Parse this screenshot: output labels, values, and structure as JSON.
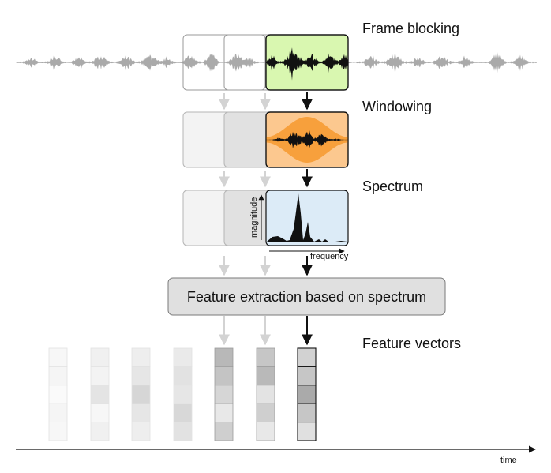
{
  "stages": {
    "frame_blocking": "Frame blocking",
    "windowing": "Windowing",
    "spectrum": "Spectrum",
    "feature_vectors": "Feature vectors"
  },
  "spectrum_axes": {
    "y_label": "magnitude",
    "x_label": "frequency"
  },
  "extraction_label": "Feature extraction based on spectrum",
  "time_label": "time",
  "colors": {
    "frame_fill": "#d9f7b0",
    "window_fill": "#fcc88f",
    "window_envelope": "#f7a03c",
    "spectrum_fill": "#dcebf7",
    "box_fill": "#e0e0e0",
    "waveform_gray": "#aaaaaa",
    "waveform_dark": "#111111"
  },
  "feature_vectors": [
    {
      "shades": [
        "#f7f7f7",
        "#f5f5f5",
        "#fafafa",
        "#f5f5f5",
        "#f7f7f7"
      ]
    },
    {
      "shades": [
        "#f0f0f0",
        "#f3f3f3",
        "#e4e4e4",
        "#f7f7f7",
        "#f0f0f0"
      ]
    },
    {
      "shades": [
        "#eeeeee",
        "#e6e6e6",
        "#d6d6d6",
        "#e6e6e6",
        "#eeeeee"
      ]
    },
    {
      "shades": [
        "#eaeaea",
        "#e2e2e2",
        "#e6e6e6",
        "#d8d8d8",
        "#e2e2e2"
      ]
    },
    {
      "shades": [
        "#b8b8b8",
        "#c4c4c4",
        "#d6d6d6",
        "#e8e8e8",
        "#cfcfcf"
      ]
    },
    {
      "shades": [
        "#c6c6c6",
        "#b9b9b9",
        "#e3e3e3",
        "#cfcfcf",
        "#e8e8e8"
      ]
    },
    {
      "shades": [
        "#d2d2d2",
        "#c6c6c6",
        "#aaaaaa",
        "#c6c6c6",
        "#e0e0e0"
      ]
    }
  ]
}
